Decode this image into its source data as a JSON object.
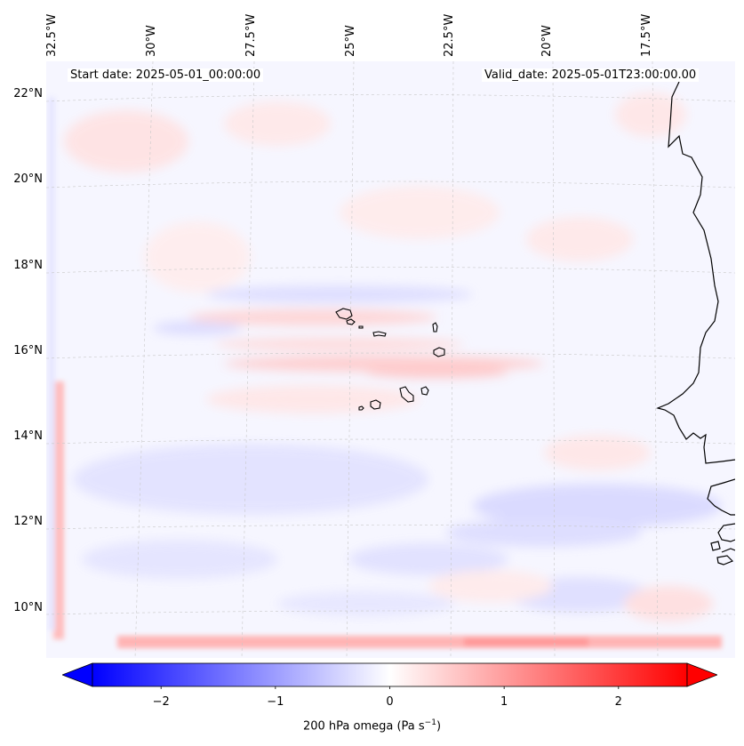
{
  "map": {
    "start_date": "Start date: 2025-05-01_00:00:00",
    "valid_date": "Valid_date: 2025-05-01T23:00:00.00",
    "lon_labels": [
      "32.5°W",
      "30°W",
      "27.5°W",
      "25°W",
      "22.5°W",
      "20°W",
      "17.5°W"
    ],
    "lat_labels": [
      "22°N",
      "20°N",
      "18°N",
      "16°N",
      "14°N",
      "12°N",
      "10°N"
    ],
    "region": "Cape Verde / West African coast",
    "field": "200 hPa omega"
  },
  "colorbar": {
    "ticks": [
      "−2",
      "−1",
      "0",
      "1",
      "2"
    ],
    "tick_values": [
      -2,
      -1,
      0,
      1,
      2
    ],
    "range": [
      -2.6,
      2.6
    ],
    "label": "200 hPa omega (Pa s",
    "label_exp": "−1",
    "label_end": ")",
    "colors": {
      "negative": "#0000ff",
      "zero": "#ffffff",
      "positive": "#ff0000"
    }
  }
}
